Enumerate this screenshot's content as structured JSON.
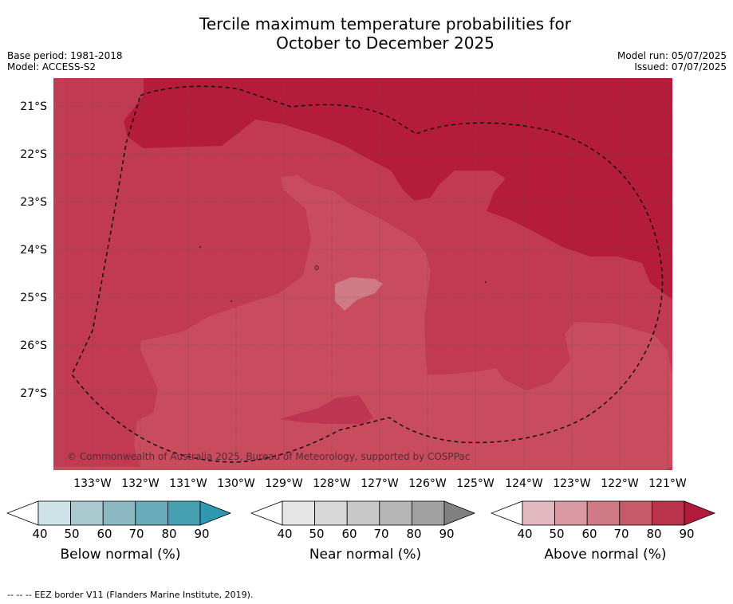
{
  "header": {
    "title_line1": "Tercile maximum temperature probabilities for",
    "title_line2": "October to December 2025",
    "base_period": "Base period: 1981-2018",
    "model": "Model: ACCESS-S2",
    "model_run": "Model run: 05/07/2025",
    "issued": "Issued: 07/07/2025"
  },
  "map": {
    "lat_labels": [
      "21°S",
      "22°S",
      "23°S",
      "24°S",
      "25°S",
      "26°S",
      "27°S"
    ],
    "lon_labels": [
      "133°W",
      "132°W",
      "131°W",
      "130°W",
      "129°W",
      "128°W",
      "127°W",
      "126°W",
      "125°W",
      "124°W",
      "123°W",
      "122°W",
      "121°W"
    ],
    "copyright": "© Commonwealth of Australia 2025, Bureau of Meteorology, supported by COSPPac",
    "colors": {
      "above_90": "#b51c3a",
      "above_80": "#c13a51",
      "above_70": "#c84b5e",
      "above_60": "#d77a87"
    }
  },
  "legends": [
    {
      "title": "Below normal (%)",
      "ticks": [
        "40",
        "50",
        "60",
        "70",
        "80",
        "90"
      ],
      "colors": [
        "#cde3e8",
        "#a9c9cf",
        "#8bb8c3",
        "#6aabba",
        "#46a0b2",
        "#2d98b0"
      ]
    },
    {
      "title": "Near normal (%)",
      "ticks": [
        "40",
        "50",
        "60",
        "70",
        "80",
        "90"
      ],
      "colors": [
        "#e6e6e6",
        "#d7d7d7",
        "#c8c8c8",
        "#b6b6b6",
        "#a1a1a1",
        "#808080"
      ]
    },
    {
      "title": "Above normal (%)",
      "ticks": [
        "40",
        "50",
        "60",
        "70",
        "80",
        "90"
      ],
      "colors": [
        "#e3b9c1",
        "#d99aa3",
        "#d07a85",
        "#c55a69",
        "#b9344a",
        "#b11a3a"
      ]
    }
  ],
  "footer": {
    "eez_note": "--  --  -- EEZ border V11 (Flanders Marine Institute, 2019)."
  }
}
